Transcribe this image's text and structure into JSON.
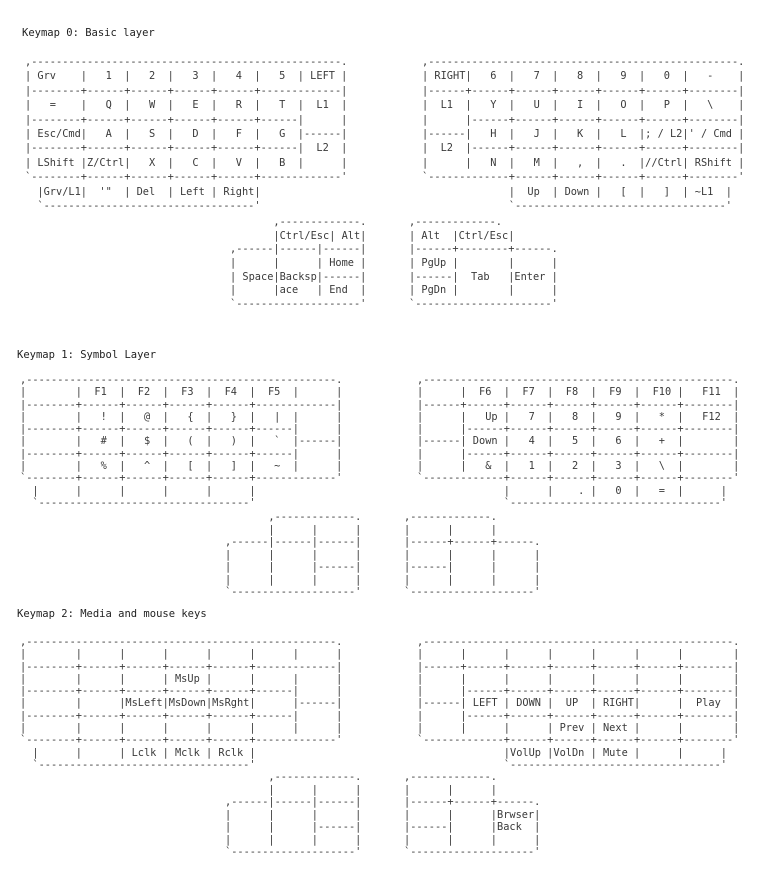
{
  "keymaps": [
    {
      "title": "Keymap 0: Basic layer",
      "left": [
        ",--------------------------------------------------.",
        "| Grv    |   1  |   2  |   3  |   4  |   5  | LEFT |",
        "|--------+------+------+------+------+-------------|",
        "|   =    |   Q  |   W  |   E  |   R  |   T  |  L1  |",
        "|--------+------+------+------+------+------|      |",
        "| Esc/Cmd|   A  |   S  |   D  |   F  |   G  |------|",
        "|--------+------+------+------+------+------|  L2  |",
        "| LShift |Z/Ctrl|   X  |   C  |   V  |   B  |      |",
        "`--------+------+------+------+------+-------------'",
        "  |Grv/L1|  '\"  | Del  | Left | Right|",
        "  `----------------------------------'"
      ],
      "right": [
        ",--------------------------------------------------.",
        "| RIGHT|   6  |   7  |   8  |   9  |   0  |   -    |",
        "|------+------+------+------+------+------+--------|",
        "|  L1  |   Y  |   U  |   I  |   O  |   P  |   \\    |",
        "|      |------+------+------+------+------+--------|",
        "|------|   H  |   J  |   K  |   L  |; / L2|' / Cmd |",
        "|  L2  |------+------+------+------+------+--------|",
        "|      |   N  |   M  |   ,  |   .  |//Ctrl| RShift |",
        "`-------------+------+------+------+------+--------'",
        "              |  Up  | Down |   [  |   ]  | ~L1  |",
        "              `----------------------------------'"
      ],
      "thumb_left": [
        "       ,-------------.",
        "       |Ctrl/Esc| Alt|",
        ",------|------|------|",
        "|      |      | Home |",
        "| Space|Backsp|------|",
        "|      |ace   | End  |",
        "`--------------------'"
      ],
      "thumb_right": [
        ",-------------.",
        "| Alt  |Ctrl/Esc|",
        "|------+--------+------.",
        "| PgUp |        |      |",
        "|------|  Tab   |Enter |",
        "| PgDn |        |      |",
        "`----------------------'"
      ]
    },
    {
      "title": "Keymap 1: Symbol Layer",
      "left": [
        ",--------------------------------------------------.",
        "|        |  F1  |  F2  |  F3  |  F4  |  F5  |      |",
        "|--------+------+------+------+------+-------------|",
        "|        |   !  |   @  |   {  |   }  |   |  |      |",
        "|--------+------+------+------+------+------|      |",
        "|        |   #  |   $  |   (  |   )  |   `  |------|",
        "|--------+------+------+------+------+------|      |",
        "|        |   %  |   ^  |   [  |   ]  |   ~  |      |",
        "`--------+------+------+------+------+-------------'",
        "  |      |      |      |      |      |",
        "  `----------------------------------'"
      ],
      "right": [
        ",--------------------------------------------------.",
        "|      |  F6  |  F7  |  F8  |  F9  |  F10 |   F11  |",
        "|------+------+------+------+------+------+--------|",
        "|      |   Up |   7  |   8  |   9  |   *  |   F12  |",
        "|      |------+------+------+------+------+--------|",
        "|------| Down |   4  |   5  |   6  |   +  |        |",
        "|      |------+------+------+------+------+--------|",
        "|      |   &  |   1  |   2  |   3  |   \\  |        |",
        "`-------------+------+------+------+------+--------'",
        "              |      |    . |   0  |   =  |      |",
        "              `----------------------------------'"
      ],
      "thumb_left": [
        "       ,-------------.",
        "       |      |      |",
        ",------|------|------|",
        "|      |      |      |",
        "|      |      |------|",
        "|      |      |      |",
        "`--------------------'"
      ],
      "thumb_right": [
        ",-------------.",
        "|      |      |",
        "|------+------+------.",
        "|      |      |      |",
        "|------|      |      |",
        "|      |      |      |",
        "`--------------------'"
      ]
    },
    {
      "title": "Keymap 2: Media and mouse keys",
      "left": [
        ",--------------------------------------------------.",
        "|        |      |      |      |      |      |      |",
        "|--------+------+------+------+------+-------------|",
        "|        |      |      | MsUp |      |      |      |",
        "|--------+------+------+------+------+------|      |",
        "|        |      |MsLeft|MsDown|MsRght|      |------|",
        "|--------+------+------+------+------+------|      |",
        "|        |      |      |      |      |      |      |",
        "`--------+------+------+------+------+-------------'",
        "  |      |      | Lclk | Mclk | Rclk |",
        "  `----------------------------------'"
      ],
      "right": [
        ",--------------------------------------------------.",
        "|      |      |      |      |      |      |        |",
        "|------+------+------+------+------+------+--------|",
        "|      |      |      |      |      |      |        |",
        "|      |------+------+------+------+------+--------|",
        "|------| LEFT | DOWN |  UP  | RIGHT|      |  Play  |",
        "|      |------+------+------+------+------+--------|",
        "|      |      |      | Prev | Next |      |        |",
        "`-------------+------+------+------+------+--------'",
        "              |VolUp |VolDn | Mute |      |      |",
        "              `----------------------------------'"
      ],
      "thumb_left": [
        "       ,-------------.",
        "       |      |      |",
        ",------|------|------|",
        "|      |      |      |",
        "|      |      |------|",
        "|      |      |      |",
        "`--------------------'"
      ],
      "thumb_right": [
        ",-------------.",
        "|      |      |",
        "|------+------+------.",
        "|      |      |Brwser|",
        "|------|      |Back  |",
        "|      |      |      |",
        "`--------------------'"
      ]
    }
  ]
}
